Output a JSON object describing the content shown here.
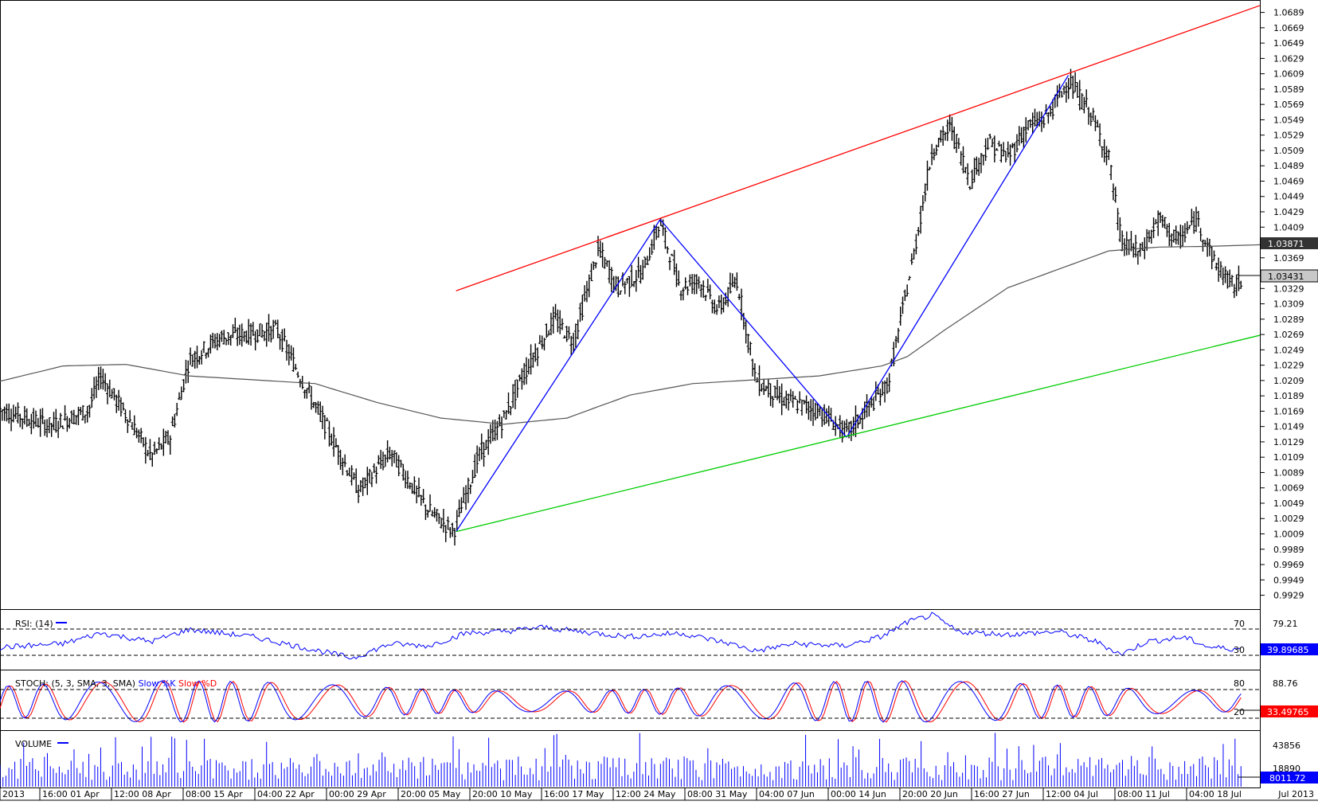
{
  "chart_data": [
    {
      "type": "ohlc",
      "symbol": "",
      "price_axis": {
        "ticks": [
          "1.0689",
          "1.0669",
          "1.0649",
          "1.0629",
          "1.0609",
          "1.0589",
          "1.0569",
          "1.0549",
          "1.0529",
          "1.0509",
          "1.0489",
          "1.0469",
          "1.0449",
          "1.0429",
          "1.0409",
          "1.0389",
          "1.0369",
          "1.0349",
          "1.0329",
          "1.0309",
          "1.0289",
          "1.0269",
          "1.0249",
          "1.0229",
          "1.0209",
          "1.0189",
          "1.0169",
          "1.0149",
          "1.0129",
          "1.0109",
          "1.0089",
          "1.0069",
          "1.0049",
          "1.0029",
          "1.0009",
          "0.9989",
          "0.9969",
          "0.9949",
          "0.9929"
        ],
        "range": [
          0.9914,
          1.07
        ]
      },
      "markers": {
        "ma_value": "1.03871",
        "last_price": "1.03431"
      },
      "colors": {
        "bars": "#000000",
        "ma": "#555555",
        "zigzag": "#0000ff",
        "upper_channel": "#ff0000",
        "lower_channel": "#00cc00"
      },
      "zigzag_points": [
        {
          "bar": 0.362,
          "price": 1.0012
        },
        {
          "bar": 0.524,
          "price": 1.0419
        },
        {
          "bar": 0.672,
          "price": 1.0135
        },
        {
          "bar": 0.848,
          "price": 1.0607
        }
      ],
      "upper_channel": [
        {
          "bar": 0.362,
          "price": 1.0326
        },
        {
          "bar": 1.0,
          "price": 1.0698
        }
      ],
      "lower_channel": [
        {
          "bar": 0.362,
          "price": 1.0012
        },
        {
          "bar": 1.0,
          "price": 1.0268
        }
      ],
      "price_anchors": [
        [
          0.0,
          1.0171
        ],
        [
          0.04,
          1.015
        ],
        [
          0.07,
          1.017
        ],
        [
          0.08,
          1.0215
        ],
        [
          0.1,
          1.0165
        ],
        [
          0.12,
          1.011
        ],
        [
          0.135,
          1.0135
        ],
        [
          0.15,
          1.0235
        ],
        [
          0.175,
          1.0265
        ],
        [
          0.22,
          1.0275
        ],
        [
          0.235,
          1.0225
        ],
        [
          0.26,
          1.0145
        ],
        [
          0.285,
          1.0065
        ],
        [
          0.31,
          1.0115
        ],
        [
          0.34,
          1.004
        ],
        [
          0.36,
          1.0012
        ],
        [
          0.38,
          1.011
        ],
        [
          0.4,
          1.016
        ],
        [
          0.415,
          1.0215
        ],
        [
          0.44,
          1.029
        ],
        [
          0.455,
          1.026
        ],
        [
          0.475,
          1.038
        ],
        [
          0.49,
          1.033
        ],
        [
          0.51,
          1.035
        ],
        [
          0.524,
          1.0415
        ],
        [
          0.54,
          1.033
        ],
        [
          0.555,
          1.034
        ],
        [
          0.57,
          1.03
        ],
        [
          0.585,
          1.034
        ],
        [
          0.6,
          1.021
        ],
        [
          0.62,
          1.0185
        ],
        [
          0.65,
          1.017
        ],
        [
          0.672,
          1.014
        ],
        [
          0.69,
          1.0175
        ],
        [
          0.705,
          1.0205
        ],
        [
          0.725,
          1.037
        ],
        [
          0.74,
          1.051
        ],
        [
          0.755,
          1.054
        ],
        [
          0.77,
          1.047
        ],
        [
          0.785,
          1.052
        ],
        [
          0.8,
          1.05
        ],
        [
          0.815,
          1.054
        ],
        [
          0.83,
          1.055
        ],
        [
          0.848,
          1.06
        ],
        [
          0.865,
          1.056
        ],
        [
          0.88,
          1.05
        ],
        [
          0.89,
          1.039
        ],
        [
          0.905,
          1.0375
        ],
        [
          0.92,
          1.042
        ],
        [
          0.935,
          1.039
        ],
        [
          0.95,
          1.042
        ],
        [
          0.965,
          1.036
        ],
        [
          0.98,
          1.033
        ],
        [
          0.985,
          1.034
        ]
      ],
      "ma_anchors": [
        [
          0.0,
          1.0208
        ],
        [
          0.05,
          1.0228
        ],
        [
          0.1,
          1.023
        ],
        [
          0.15,
          1.0215
        ],
        [
          0.2,
          1.021
        ],
        [
          0.25,
          1.0205
        ],
        [
          0.3,
          1.018
        ],
        [
          0.35,
          1.016
        ],
        [
          0.4,
          1.0152
        ],
        [
          0.45,
          1.016
        ],
        [
          0.5,
          1.019
        ],
        [
          0.55,
          1.0205
        ],
        [
          0.6,
          1.021
        ],
        [
          0.65,
          1.0215
        ],
        [
          0.7,
          1.0228
        ],
        [
          0.72,
          1.024
        ],
        [
          0.75,
          1.0275
        ],
        [
          0.8,
          1.033
        ],
        [
          0.85,
          1.036
        ],
        [
          0.88,
          1.0378
        ],
        [
          0.92,
          1.0383
        ],
        [
          0.96,
          1.0384
        ],
        [
          1.0,
          1.0386
        ]
      ]
    },
    {
      "type": "line",
      "title": "RSI: (14)",
      "levels": [
        70,
        30
      ],
      "level_labels": [
        "70",
        "30"
      ],
      "axis_tick": "79.21",
      "current_value": "39.89685",
      "range": [
        10,
        90
      ],
      "color": "#0000ff",
      "anchors": [
        [
          0.0,
          40
        ],
        [
          0.05,
          45
        ],
        [
          0.08,
          60
        ],
        [
          0.12,
          48
        ],
        [
          0.15,
          65
        ],
        [
          0.2,
          55
        ],
        [
          0.24,
          40
        ],
        [
          0.28,
          25
        ],
        [
          0.31,
          45
        ],
        [
          0.34,
          42
        ],
        [
          0.37,
          60
        ],
        [
          0.4,
          62
        ],
        [
          0.43,
          68
        ],
        [
          0.46,
          62
        ],
        [
          0.5,
          55
        ],
        [
          0.54,
          60
        ],
        [
          0.58,
          45
        ],
        [
          0.6,
          35
        ],
        [
          0.63,
          45
        ],
        [
          0.67,
          42
        ],
        [
          0.7,
          55
        ],
        [
          0.72,
          75
        ],
        [
          0.74,
          85
        ],
        [
          0.76,
          62
        ],
        [
          0.8,
          58
        ],
        [
          0.84,
          62
        ],
        [
          0.87,
          48
        ],
        [
          0.89,
          30
        ],
        [
          0.91,
          48
        ],
        [
          0.94,
          54
        ],
        [
          0.96,
          40
        ],
        [
          0.98,
          38
        ]
      ]
    },
    {
      "type": "line",
      "title": "STOCH: (5, 3, SMA, 3, SMA)",
      "legend": [
        "Slow %K",
        "Slow %D"
      ],
      "levels": [
        80,
        20
      ],
      "level_labels": [
        "80",
        "20"
      ],
      "axis_tick": "88.76",
      "current_value": "33.49765",
      "range": [
        0,
        100
      ],
      "colors": {
        "k": "#0000ff",
        "d": "#ff0000"
      }
    },
    {
      "type": "bar",
      "title": "VOLUME",
      "axis_ticks": [
        "43856",
        "18890"
      ],
      "current_value": "8011.72",
      "color": "#0000ff"
    }
  ],
  "time_axis": {
    "labels": [
      "2013",
      "16:00 01 Apr",
      "12:00 08 Apr",
      "08:00 15 Apr",
      "04:00 22 Apr",
      "00:00 29 Apr",
      "20:00 05 May",
      "20:00 10 May",
      "16:00 17 May",
      "12:00 24 May",
      "08:00 31 May",
      "04:00 07 Jun",
      "00:00 14 Jun",
      "20:00 20 Jun",
      "16:00 27 Jun",
      "12:00 04 Jul",
      "08:00 11 Jul",
      "04:00 18 Jul"
    ],
    "right_label": "Jul 2013"
  }
}
